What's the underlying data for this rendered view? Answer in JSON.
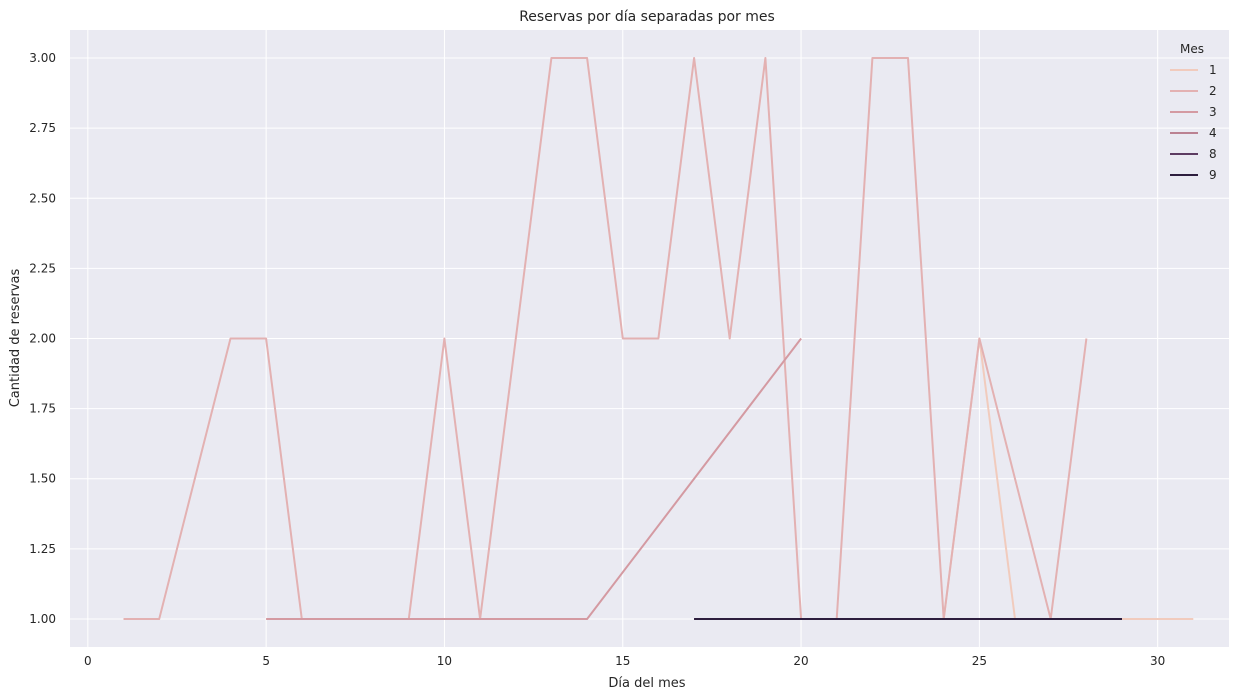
{
  "chart_data": {
    "type": "line",
    "title": "Reservas por día separadas por mes",
    "xlabel": "Día del mes",
    "ylabel": "Cantidad de reservas",
    "xlim": [
      -0.5,
      32.0
    ],
    "ylim": [
      0.9,
      3.1
    ],
    "x_ticks": [
      0,
      5,
      10,
      15,
      20,
      25,
      30
    ],
    "y_ticks": [
      1.0,
      1.25,
      1.5,
      1.75,
      2.0,
      2.25,
      2.5,
      2.75,
      3.0
    ],
    "y_tick_labels": [
      "1.00",
      "1.25",
      "1.50",
      "1.75",
      "2.00",
      "2.25",
      "2.50",
      "2.75",
      "3.00"
    ],
    "grid": true,
    "background": "#eaeaf2",
    "legend": {
      "title": "Mes",
      "placement": "top-right"
    },
    "series": [
      {
        "name": "1",
        "color": "#f1cbbd",
        "x": [
          24,
          25,
          26,
          28,
          29,
          30,
          31
        ],
        "y": [
          1,
          2,
          1,
          1,
          1,
          1,
          1
        ]
      },
      {
        "name": "2",
        "color": "#e3b1b2",
        "x": [
          1,
          2,
          3,
          4,
          5,
          6,
          7,
          8,
          9,
          10,
          11,
          12,
          13,
          14,
          15,
          16,
          17,
          18,
          19,
          20,
          21,
          22,
          23,
          24,
          25,
          26,
          27,
          28
        ],
        "y": [
          1,
          1,
          1.5,
          2,
          2,
          1,
          1,
          1,
          1,
          2,
          1,
          2,
          3,
          3,
          2,
          2,
          3,
          2,
          3,
          1,
          1,
          3,
          3,
          1,
          2,
          1.5,
          1,
          2
        ]
      },
      {
        "name": "3",
        "color": "#d49aa2",
        "x": [
          5,
          14,
          20
        ],
        "y": [
          1,
          1,
          2
        ]
      },
      {
        "name": "4",
        "color": "#bb8292",
        "x": [],
        "y": []
      },
      {
        "name": "8",
        "color": "#5d3c62",
        "x": [
          17,
          29
        ],
        "y": [
          1,
          1
        ]
      },
      {
        "name": "9",
        "color": "#2d1e3e",
        "x": [
          17,
          29
        ],
        "y": [
          1,
          1
        ]
      }
    ]
  }
}
